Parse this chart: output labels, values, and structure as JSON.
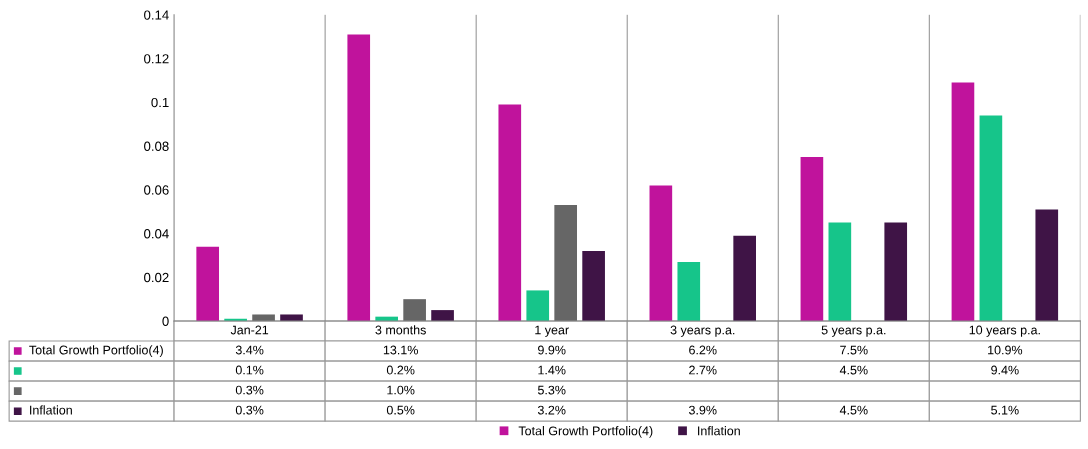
{
  "chart_data": {
    "type": "bar",
    "categories": [
      "Jan-21",
      "3 months",
      "1 year",
      "3 years p.a.",
      "5 years p.a.",
      "10 years p.a."
    ],
    "series": [
      {
        "name": "Total Growth Portfolio(4)",
        "color": "#c0139c",
        "values": [
          0.034,
          0.131,
          0.099,
          0.062,
          0.075,
          0.109
        ],
        "value_labels": [
          "3.4%",
          "13.1%",
          "9.9%",
          "6.2%",
          "7.5%",
          "10.9%"
        ]
      },
      {
        "color": "#16c58a",
        "values": [
          0.001,
          0.002,
          0.014,
          0.027,
          0.045,
          0.094
        ],
        "value_labels": [
          "0.1%",
          "0.2%",
          "1.4%",
          "2.7%",
          "4.5%",
          "9.4%"
        ]
      },
      {
        "color": "#666666",
        "values": [
          0.003,
          0.01,
          0.053,
          null,
          null,
          null
        ],
        "value_labels": [
          "0.3%",
          "1.0%",
          "5.3%",
          null,
          null,
          null
        ]
      },
      {
        "name": "Inflation",
        "color": "#3f1446",
        "values": [
          0.003,
          0.005,
          0.032,
          0.039,
          0.045,
          0.051
        ],
        "value_labels": [
          "0.3%",
          "0.5%",
          "3.2%",
          "3.9%",
          "4.5%",
          "5.1%"
        ]
      }
    ],
    "ylim": [
      0,
      0.14
    ],
    "yticks": [
      0,
      0.02,
      0.04,
      0.06,
      0.08,
      0.1,
      0.12,
      0.14
    ],
    "grid": false,
    "legend": "bottom"
  }
}
